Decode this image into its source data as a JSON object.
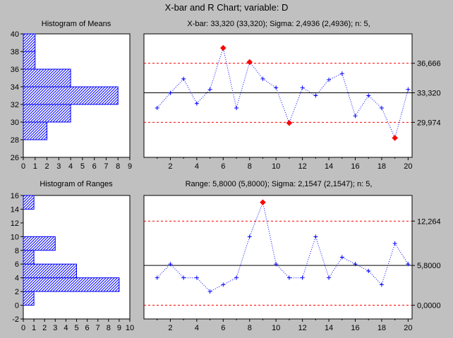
{
  "window_title": "X-bar and R Chart; variable:  D",
  "colors": {
    "background": "#c0c0c0",
    "plot_bg": "#ffffff",
    "series": "#0000ff",
    "center": "#000000",
    "limits": "#ff0000",
    "out_of_control": "#ff0000",
    "hist_fill": "#0000ff"
  },
  "chart_data": [
    {
      "id": "hist_means",
      "type": "bar",
      "orientation": "horizontal",
      "title": "Histogram of Means",
      "bins": [
        {
          "from": 28,
          "to": 30,
          "count": 2
        },
        {
          "from": 30,
          "to": 32,
          "count": 4
        },
        {
          "from": 32,
          "to": 34,
          "count": 8
        },
        {
          "from": 34,
          "to": 36,
          "count": 4
        },
        {
          "from": 36,
          "to": 38,
          "count": 1
        },
        {
          "from": 38,
          "to": 40,
          "count": 1
        }
      ],
      "xlim": [
        0,
        9
      ],
      "xticks": [
        "0",
        "1",
        "2",
        "3",
        "4",
        "5",
        "6",
        "7",
        "8",
        "9"
      ],
      "ylim": [
        26,
        40
      ],
      "yticks": [
        "26",
        "28",
        "30",
        "32",
        "34",
        "36",
        "38",
        "40"
      ]
    },
    {
      "id": "xbar",
      "type": "line",
      "title": "X-bar: 33,320 (33,320); Sigma: 2,4936 (2,4936); n: 5,",
      "x": [
        1,
        2,
        3,
        4,
        5,
        6,
        7,
        8,
        9,
        10,
        11,
        12,
        13,
        14,
        15,
        16,
        17,
        18,
        19,
        20
      ],
      "values": [
        31.6,
        33.3,
        34.9,
        32.1,
        33.7,
        38.4,
        31.6,
        36.8,
        34.9,
        33.9,
        29.9,
        33.9,
        33.0,
        34.8,
        35.5,
        30.7,
        33.0,
        31.6,
        28.2,
        33.7
      ],
      "center": 33.32,
      "ucl": 36.666,
      "lcl": 29.974,
      "out_of_control": [
        6,
        8,
        11,
        19
      ],
      "xlim": [
        0,
        20.3
      ],
      "ylim": [
        26,
        40
      ],
      "xticks": [
        "2",
        "4",
        "6",
        "8",
        "10",
        "12",
        "14",
        "16",
        "18",
        "20"
      ],
      "right_labels": [
        "36,666",
        "33,320",
        "29,974"
      ]
    },
    {
      "id": "hist_ranges",
      "type": "bar",
      "orientation": "horizontal",
      "title": "Histogram of Ranges",
      "bins": [
        {
          "from": 0,
          "to": 2,
          "count": 1
        },
        {
          "from": 2,
          "to": 4,
          "count": 9
        },
        {
          "from": 4,
          "to": 6,
          "count": 5
        },
        {
          "from": 6,
          "to": 8,
          "count": 1
        },
        {
          "from": 8,
          "to": 10,
          "count": 3
        },
        {
          "from": 14,
          "to": 16,
          "count": 1
        }
      ],
      "xlim": [
        0,
        10
      ],
      "xticks": [
        "0",
        "1",
        "2",
        "3",
        "4",
        "5",
        "6",
        "7",
        "8",
        "9",
        "10"
      ],
      "ylim": [
        -2,
        16
      ],
      "yticks": [
        "-2",
        "0",
        "2",
        "4",
        "6",
        "8",
        "10",
        "12",
        "14",
        "16"
      ]
    },
    {
      "id": "range",
      "type": "line",
      "title": "Range: 5,8000 (5,8000); Sigma: 2,1547 (2,1547); n: 5,",
      "x": [
        1,
        2,
        3,
        4,
        5,
        6,
        7,
        8,
        9,
        10,
        11,
        12,
        13,
        14,
        15,
        16,
        17,
        18,
        19,
        20
      ],
      "values": [
        4,
        6,
        4,
        4,
        2,
        3,
        4,
        10,
        15,
        6,
        4,
        4,
        10,
        4,
        7,
        6,
        5,
        3,
        9,
        6
      ],
      "center": 5.8,
      "ucl": 12.264,
      "lcl": 0.0,
      "out_of_control": [
        9
      ],
      "xlim": [
        0,
        20.3
      ],
      "ylim": [
        -2,
        16
      ],
      "xticks": [
        "2",
        "4",
        "6",
        "8",
        "10",
        "12",
        "14",
        "16",
        "18",
        "20"
      ],
      "right_labels": [
        "12,264",
        "5,8000",
        "0,0000"
      ]
    }
  ]
}
